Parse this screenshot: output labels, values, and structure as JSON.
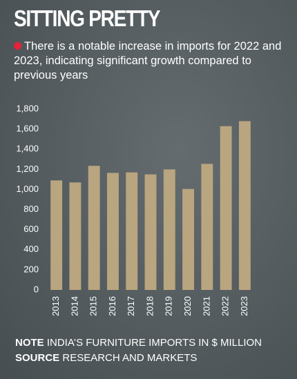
{
  "chart_data": {
    "type": "bar",
    "title": "SITTING PRETTY",
    "subtitle": "There is a notable increase in imports for 2022 and 2023, indicating significant growth compared to previous years",
    "categories": [
      "2013",
      "2014",
      "2015",
      "2016",
      "2017",
      "2018",
      "2019",
      "2020",
      "2021",
      "2022",
      "2023"
    ],
    "values": [
      1090,
      1070,
      1235,
      1165,
      1170,
      1150,
      1200,
      1005,
      1255,
      1630,
      1680
    ],
    "color": "#b9a57f",
    "ylim": [
      0,
      1800
    ],
    "yticks": [
      0,
      200,
      400,
      600,
      800,
      {
        "value": 1000,
        "label": "1,000"
      },
      {
        "value": 1200,
        "label": "1,200"
      },
      {
        "value": 1400,
        "label": "1,400"
      },
      {
        "value": 1600,
        "label": "1,600"
      },
      {
        "value": 1800,
        "label": "1,800"
      }
    ],
    "grid": false,
    "note_label": "NOTE",
    "note": "INDIA’S FURNITURE IMPORTS IN $ MILLION",
    "source_label": "SOURCE",
    "source": "RESEARCH AND MARKETS"
  }
}
